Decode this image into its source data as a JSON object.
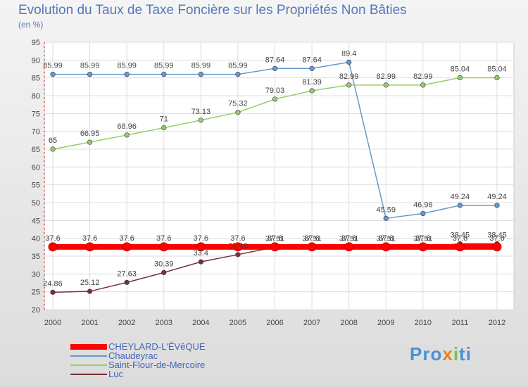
{
  "chart_data": {
    "type": "line",
    "title": "Evolution du Taux de Taxe Foncière sur les Propriétés Non Bâties",
    "subtitle": "(en %)",
    "categories": [
      "2000",
      "2001",
      "2002",
      "2003",
      "2004",
      "2005",
      "2006",
      "2007",
      "2008",
      "2009",
      "2010",
      "2011",
      "2012"
    ],
    "ylim": [
      20,
      95
    ],
    "yticks": [
      20,
      25,
      30,
      35,
      40,
      45,
      50,
      55,
      60,
      65,
      70,
      75,
      80,
      85,
      90,
      95
    ],
    "grid": true,
    "series": [
      {
        "name": "Chaudeyrac",
        "color": "#6699cc",
        "thick": false,
        "values": [
          85.99,
          85.99,
          85.99,
          85.99,
          85.99,
          85.99,
          87.64,
          87.64,
          89.4,
          45.59,
          46.96,
          49.24,
          49.24
        ],
        "labels": [
          "85.99",
          "85.99",
          "85.99",
          "85.99",
          "85.99",
          "85.99",
          "87.64",
          "87.64",
          "89.4",
          "45.59",
          "46.96",
          "49.24",
          "49.24"
        ]
      },
      {
        "name": "Saint-Flour-de-Mercoire",
        "color": "#99cc66",
        "thick": false,
        "values": [
          65,
          66.95,
          68.96,
          71,
          73.13,
          75.32,
          79.03,
          81.39,
          82.99,
          82.99,
          82.99,
          85.04,
          85.04
        ],
        "labels": [
          "65",
          "66.95",
          "68.96",
          "71",
          "73.13",
          "75.32",
          "79.03",
          "81.39",
          "82.99",
          "82.99",
          "82.99",
          "85.04",
          "85.04"
        ]
      },
      {
        "name": "Luc",
        "color": "#773333",
        "thick": false,
        "values": [
          24.86,
          25.12,
          27.63,
          30.39,
          33.4,
          35.43,
          37.51,
          37.51,
          37.51,
          37.51,
          37.51,
          38.45,
          38.45
        ],
        "labels": [
          "24.86",
          "25.12",
          "27.63",
          "30.39",
          "33.4",
          "35.43",
          "37.51",
          "37.51",
          "37.51",
          "37.51",
          "37.51",
          "38.45",
          "38.45"
        ]
      },
      {
        "name": "CHEYLARD-L'ÉVêQUE",
        "color": "#ff0000",
        "thick": true,
        "values": [
          37.6,
          37.6,
          37.6,
          37.6,
          37.6,
          37.6,
          37.6,
          37.6,
          37.6,
          37.6,
          37.6,
          37.6,
          37.6
        ],
        "labels": [
          "37.6",
          "37.6",
          "37.6",
          "37.6",
          "37.6",
          "37.6",
          "37.6",
          "37.6",
          "37.6",
          "37.6",
          "37.6",
          "37.6",
          "37.6"
        ]
      }
    ],
    "legend": [
      {
        "name": "CHEYLARD-L'ÉVêQUE",
        "color": "#ff0000",
        "thick": true
      },
      {
        "name": "Chaudeyrac",
        "color": "#6699cc",
        "thick": false
      },
      {
        "name": "Saint-Flour-de-Mercoire",
        "color": "#99cc66",
        "thick": false
      },
      {
        "name": "Luc",
        "color": "#773333",
        "thick": false
      }
    ]
  },
  "logo": {
    "part1": "Pro",
    "part2": "x",
    "part3": "i",
    "part4": "ti"
  }
}
